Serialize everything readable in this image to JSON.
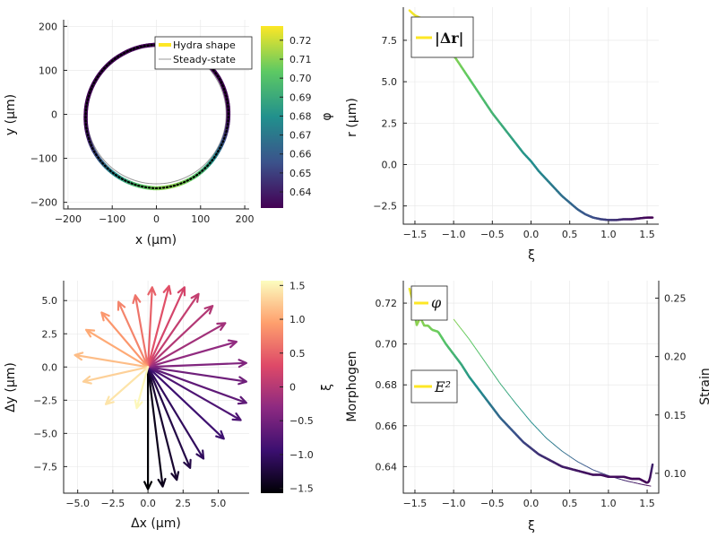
{
  "colors": {
    "viridis": [
      "#440154",
      "#3b528b",
      "#21908d",
      "#5dc963",
      "#fde725"
    ],
    "magma": [
      "#000004",
      "#3b0f70",
      "#8c2981",
      "#de4968",
      "#fe9f6d",
      "#fcfdbf"
    ]
  },
  "chart_data": [
    {
      "id": "shape",
      "type": "line",
      "xlabel": "x (μm)",
      "ylabel": "y (μm)",
      "xlim": [
        -210,
        210
      ],
      "ylim": [
        -215,
        215
      ],
      "xticks": [
        -200,
        -100,
        0,
        100,
        200
      ],
      "yticks": [
        -200,
        -100,
        0,
        100,
        200
      ],
      "xticklabels": [
        "−200",
        "−100",
        "0",
        "100",
        "200"
      ],
      "yticklabels": [
        "−200",
        "−100",
        "0",
        "100",
        "200"
      ],
      "colorbar": {
        "label": "φ",
        "range": [
          0.6315,
          0.7275
        ],
        "ticks": [
          0.64,
          0.65,
          0.66,
          0.67,
          0.68,
          0.69,
          0.7,
          0.71,
          0.72
        ],
        "ticklabels": [
          "0.64",
          "0.65",
          "0.66",
          "0.67",
          "0.68",
          "0.69",
          "0.70",
          "0.71",
          "0.72"
        ]
      },
      "legend": {
        "position": "top-right",
        "entries": [
          "Hydra shape",
          "Steady-state"
        ]
      },
      "series": [
        {
          "name": "Hydra shape",
          "style": "thick-colormapped",
          "polar_theta_deg": [
            90,
            60,
            30,
            0,
            -30,
            -60,
            -90,
            -120,
            -150,
            180,
            150,
            120,
            90
          ],
          "polar_r": [
            158,
            162,
            164,
            163,
            163,
            166,
            168,
            166,
            164,
            160,
            158,
            157,
            158
          ]
        },
        {
          "name": "Steady-state",
          "style": "thin-gray-dotted",
          "polar_r_constant": 158
        }
      ]
    },
    {
      "id": "displacement",
      "type": "line",
      "xlabel": "ξ",
      "ylabel": "r (μm)",
      "xlim": [
        -1.65,
        1.65
      ],
      "ylim": [
        -3.6,
        9.5
      ],
      "xticks": [
        -1.5,
        -1.0,
        -0.5,
        0,
        0.5,
        1.0,
        1.5
      ],
      "yticks": [
        -2.5,
        0,
        2.5,
        5.0,
        7.5
      ],
      "xticklabels": [
        "−1.5",
        "−1.0",
        "−0.5",
        "0.0",
        "0.5",
        "1.0",
        "1.5"
      ],
      "yticklabels": [
        "−2.5",
        "0.0",
        "2.5",
        "5.0",
        "7.5"
      ],
      "legend": {
        "position": "top-left",
        "entries": [
          "|Δr|"
        ]
      },
      "series": [
        {
          "name": "|Δr|",
          "x": [
            -1.57,
            -1.5,
            -1.4,
            -1.3,
            -1.2,
            -1.1,
            -1.0,
            -0.9,
            -0.8,
            -0.7,
            -0.6,
            -0.5,
            -0.4,
            -0.3,
            -0.2,
            -0.1,
            0.0,
            0.1,
            0.2,
            0.3,
            0.4,
            0.5,
            0.6,
            0.7,
            0.8,
            0.9,
            1.0,
            1.1,
            1.2,
            1.3,
            1.4,
            1.5,
            1.57
          ],
          "y": [
            9.3,
            9.0,
            8.8,
            8.5,
            7.9,
            7.3,
            6.6,
            5.9,
            5.2,
            4.5,
            3.8,
            3.1,
            2.5,
            1.9,
            1.3,
            0.7,
            0.2,
            -0.4,
            -0.9,
            -1.4,
            -1.9,
            -2.3,
            -2.7,
            -3.0,
            -3.2,
            -3.3,
            -3.35,
            -3.35,
            -3.3,
            -3.3,
            -3.25,
            -3.2,
            -3.2
          ]
        }
      ]
    },
    {
      "id": "quiver",
      "type": "scatter",
      "xlabel": "Δx (μm)",
      "ylabel": "Δy (μm)",
      "xlim": [
        -6.0,
        7.2
      ],
      "ylim": [
        -9.5,
        6.5
      ],
      "xticks": [
        -5.0,
        -2.5,
        0,
        2.5,
        5.0
      ],
      "yticks": [
        -7.5,
        -5.0,
        -2.5,
        0,
        2.5,
        5.0
      ],
      "xticklabels": [
        "−5.0",
        "−2.5",
        "0.0",
        "2.5",
        "5.0"
      ],
      "yticklabels": [
        "−7.5",
        "−5.0",
        "−2.5",
        "0.0",
        "2.5",
        "5.0"
      ],
      "colorbar": {
        "label": "ξ",
        "range": [
          -1.5708,
          1.5708
        ],
        "ticks": [
          1.5,
          1.0,
          0.5,
          0,
          -0.5,
          -1.0,
          -1.5
        ],
        "ticklabels": [
          "1.5",
          "1.0",
          "0.5",
          "0",
          "−0.5",
          "−1.0",
          "−1.5"
        ]
      },
      "arrows_xi": [
        -1.5708,
        -1.4416,
        -1.3124,
        -1.1832,
        -1.054,
        -0.9248,
        -0.7956,
        -0.6664,
        -0.5372,
        -0.408,
        -0.2788,
        -0.1496,
        -0.0204,
        0.1088,
        0.238,
        0.3672,
        0.4964,
        0.6256,
        0.7548,
        0.884,
        1.0132,
        1.1424,
        1.2716,
        1.4008,
        1.53
      ],
      "arrows_dx": [
        0.0,
        1.05,
        2.05,
        3.0,
        3.95,
        5.4,
        6.6,
        7.0,
        7.0,
        7.0,
        6.3,
        5.5,
        4.6,
        3.6,
        2.6,
        1.5,
        0.3,
        -0.9,
        -2.1,
        -3.3,
        -4.4,
        -5.2,
        -4.6,
        -3.0,
        -0.8
      ],
      "arrows_dy": [
        -9.2,
        -9.0,
        -8.5,
        -7.6,
        -6.9,
        -5.4,
        -4.0,
        -2.7,
        -1.1,
        0.3,
        1.9,
        3.3,
        4.6,
        5.5,
        6.0,
        6.1,
        6.0,
        5.4,
        4.9,
        4.1,
        2.8,
        0.9,
        -1.1,
        -2.8,
        -3.1
      ]
    },
    {
      "id": "morphogen",
      "type": "line",
      "xlabel": "ξ",
      "ylabel": "Morphogen",
      "ylabel2": "Strain",
      "xlim": [
        -1.65,
        1.65
      ],
      "ylim": [
        0.627,
        0.731
      ],
      "ylim2": [
        0.083,
        0.265
      ],
      "xticks": [
        -1.5,
        -1.0,
        -0.5,
        0,
        0.5,
        1.0,
        1.5
      ],
      "yticks": [
        0.64,
        0.66,
        0.68,
        0.7,
        0.72
      ],
      "yticks2": [
        0.1,
        0.15,
        0.2,
        0.25
      ],
      "xticklabels": [
        "−1.5",
        "−1.0",
        "−0.5",
        "0.0",
        "0.5",
        "1.0",
        "1.5"
      ],
      "yticklabels": [
        "0.64",
        "0.66",
        "0.68",
        "0.70",
        "0.72"
      ],
      "yticklabels2": [
        "0.10",
        "0.15",
        "0.20",
        "0.25"
      ],
      "legend": {
        "position": "left",
        "entries": [
          "φ",
          "E²"
        ]
      },
      "series": [
        {
          "name": "φ",
          "x": [
            -1.57,
            -1.52,
            -1.48,
            -1.43,
            -1.38,
            -1.33,
            -1.28,
            -1.2,
            -1.1,
            -1.0,
            -0.9,
            -0.8,
            -0.7,
            -0.6,
            -0.5,
            -0.4,
            -0.3,
            -0.2,
            -0.1,
            0.0,
            0.1,
            0.2,
            0.3,
            0.4,
            0.5,
            0.6,
            0.7,
            0.8,
            0.9,
            1.0,
            1.1,
            1.2,
            1.3,
            1.4,
            1.45,
            1.5,
            1.53,
            1.57
          ],
          "y": [
            0.727,
            0.72,
            0.709,
            0.713,
            0.709,
            0.709,
            0.707,
            0.706,
            0.7,
            0.695,
            0.69,
            0.684,
            0.679,
            0.674,
            0.669,
            0.664,
            0.66,
            0.656,
            0.652,
            0.649,
            0.646,
            0.644,
            0.642,
            0.64,
            0.639,
            0.638,
            0.637,
            0.636,
            0.636,
            0.635,
            0.635,
            0.635,
            0.634,
            0.634,
            0.633,
            0.632,
            0.633,
            0.641
          ]
        },
        {
          "name": "E²",
          "x": [
            -1.0,
            -0.8,
            -0.6,
            -0.4,
            -0.2,
            0.0,
            0.2,
            0.4,
            0.6,
            0.8,
            1.0,
            1.2,
            1.4,
            1.55
          ],
          "y": [
            0.232,
            0.215,
            0.196,
            0.177,
            0.16,
            0.144,
            0.13,
            0.119,
            0.11,
            0.103,
            0.098,
            0.094,
            0.091,
            0.089
          ]
        }
      ]
    }
  ]
}
